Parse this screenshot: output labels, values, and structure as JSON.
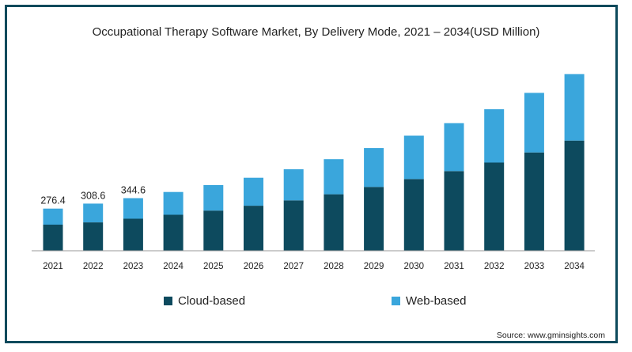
{
  "chart_data": {
    "type": "bar",
    "stacked": true,
    "title": "Occupational Therapy Software Market, By Delivery Mode, 2021 – 2034(USD Million)",
    "categories": [
      "2021",
      "2022",
      "2023",
      "2024",
      "2025",
      "2026",
      "2027",
      "2028",
      "2029",
      "2030",
      "2031",
      "2032",
      "2033",
      "2034"
    ],
    "series": [
      {
        "name": "Cloud-based",
        "color": "#0d4a5e",
        "values": [
          171,
          186,
          210,
          236,
          263,
          295,
          330,
          370,
          418,
          470,
          522,
          578,
          644,
          722
        ]
      },
      {
        "name": "Web-based",
        "color": "#3aa6dc",
        "values": [
          105.4,
          122.6,
          134.6,
          149,
          167,
          183,
          204,
          230,
          255,
          284,
          314,
          349,
          390,
          435
        ]
      }
    ],
    "totals_labeled": [
      "276.4",
      "308.6",
      "344.6"
    ],
    "ylim": [
      0,
      1200
    ],
    "legend_position": "bottom",
    "grid": false
  },
  "source": "Source: www.gminsights.com"
}
